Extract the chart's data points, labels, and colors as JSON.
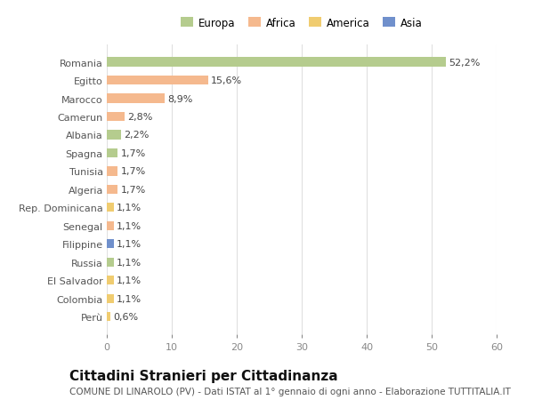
{
  "categories": [
    "Romania",
    "Egitto",
    "Marocco",
    "Camerun",
    "Albania",
    "Spagna",
    "Tunisia",
    "Algeria",
    "Rep. Dominicana",
    "Senegal",
    "Filippine",
    "Russia",
    "El Salvador",
    "Colombia",
    "Perù"
  ],
  "values": [
    52.2,
    15.6,
    8.9,
    2.8,
    2.2,
    1.7,
    1.7,
    1.7,
    1.1,
    1.1,
    1.1,
    1.1,
    1.1,
    1.1,
    0.6
  ],
  "labels": [
    "52,2%",
    "15,6%",
    "8,9%",
    "2,8%",
    "2,2%",
    "1,7%",
    "1,7%",
    "1,7%",
    "1,1%",
    "1,1%",
    "1,1%",
    "1,1%",
    "1,1%",
    "1,1%",
    "0,6%"
  ],
  "colors": [
    "#b5cc8e",
    "#f5b98e",
    "#f5b98e",
    "#f5b98e",
    "#b5cc8e",
    "#b5cc8e",
    "#f5b98e",
    "#f5b98e",
    "#f0cc70",
    "#f5b98e",
    "#7090cc",
    "#b5cc8e",
    "#f0cc70",
    "#f0cc70",
    "#f0cc70"
  ],
  "legend_labels": [
    "Europa",
    "Africa",
    "America",
    "Asia"
  ],
  "legend_colors": [
    "#b5cc8e",
    "#f5b98e",
    "#f0cc70",
    "#7090cc"
  ],
  "xlim": [
    0,
    60
  ],
  "xticks": [
    0,
    10,
    20,
    30,
    40,
    50,
    60
  ],
  "title": "Cittadini Stranieri per Cittadinanza",
  "subtitle": "COMUNE DI LINAROLO (PV) - Dati ISTAT al 1° gennaio di ogni anno - Elaborazione TUTTITALIA.IT",
  "bg_color": "#ffffff",
  "plot_bg_color": "#ffffff",
  "grid_color": "#e0e0e0",
  "title_fontsize": 11,
  "subtitle_fontsize": 7.5,
  "label_fontsize": 8,
  "tick_fontsize": 8,
  "bar_height": 0.5
}
